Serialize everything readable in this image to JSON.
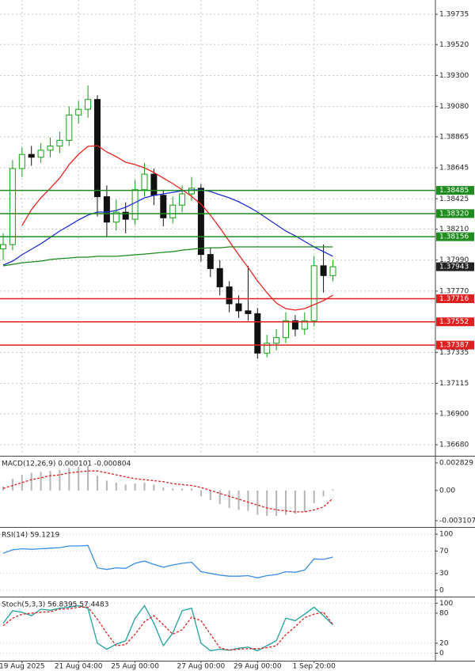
{
  "chart_data": [
    {
      "type": "candlestick",
      "categories": [
        null,
        null,
        "19 Aug 2025",
        null,
        null,
        null,
        null,
        null,
        "21 Aug 04:00",
        null,
        null,
        null,
        null,
        null,
        "25 Aug 00:00",
        null,
        null,
        null,
        null,
        null,
        null,
        "27 Aug 00:00",
        null,
        null,
        null,
        null,
        null,
        "29 Aug 00:00",
        null,
        null,
        null,
        null,
        null,
        "1 Sep 20:00",
        null,
        null
      ],
      "open": [
        1.3807,
        1.381,
        1.3864,
        1.3874,
        1.3872,
        1.3877,
        1.388,
        1.3884,
        1.3902,
        1.3906,
        1.3913,
        1.3844,
        1.3826,
        1.3833,
        1.3828,
        1.3849,
        1.386,
        1.3845,
        1.3829,
        1.3838,
        1.3846,
        1.385,
        1.3803,
        1.3793,
        1.378,
        1.3768,
        1.3763,
        1.3761,
        1.3733,
        1.374,
        1.3744,
        1.3756,
        1.375,
        1.3756,
        1.3795,
        1.3788
      ],
      "high": [
        1.3818,
        1.387,
        1.3879,
        1.388,
        1.3882,
        1.3886,
        1.389,
        1.3908,
        1.3912,
        1.3923,
        1.3916,
        1.3852,
        1.3842,
        1.384,
        1.3856,
        1.3868,
        1.3864,
        1.3849,
        1.3844,
        1.3852,
        1.3858,
        1.3853,
        1.3808,
        1.3799,
        1.3784,
        1.3774,
        1.3795,
        1.3765,
        1.3746,
        1.375,
        1.3762,
        1.376,
        1.3762,
        1.3802,
        1.381,
        1.3799
      ],
      "low": [
        1.3799,
        1.3806,
        1.3858,
        1.3866,
        1.3868,
        1.3872,
        1.3875,
        1.388,
        1.3896,
        1.39,
        1.383,
        1.3816,
        1.382,
        1.3818,
        1.3824,
        1.3844,
        1.3838,
        1.3823,
        1.3825,
        1.3833,
        1.3841,
        1.3798,
        1.3787,
        1.3774,
        1.3762,
        1.3758,
        1.3756,
        1.3729,
        1.373,
        1.3735,
        1.374,
        1.3745,
        1.3746,
        1.3752,
        1.3776,
        1.3784
      ],
      "close": [
        1.381,
        1.3864,
        1.3874,
        1.3872,
        1.3877,
        1.388,
        1.3884,
        1.3902,
        1.3906,
        1.3913,
        1.3844,
        1.3826,
        1.3833,
        1.3828,
        1.3849,
        1.386,
        1.3845,
        1.3829,
        1.3838,
        1.3846,
        1.385,
        1.3803,
        1.3793,
        1.378,
        1.3768,
        1.3763,
        1.3761,
        1.3733,
        1.374,
        1.3744,
        1.3756,
        1.375,
        1.3756,
        1.3795,
        1.3788,
        1.37943
      ],
      "up_color": "#12a012",
      "down_color": "#111111",
      "ylim": [
        1.36607,
        1.39836
      ],
      "yticks": [
        1.39735,
        {
          "value": 1.3952,
          "label": "1.39520"
        },
        {
          "value": 1.393,
          "label": "1.39300"
        },
        {
          "value": 1.3908,
          "label": "1.39080"
        },
        1.38865,
        1.38645,
        1.38425,
        {
          "value": 1.3821,
          "label": "1.38210"
        },
        {
          "value": 1.3799,
          "label": "1.37990"
        },
        {
          "value": 1.3777,
          "label": "1.37770"
        },
        1.37335,
        1.37115,
        {
          "value": 1.369,
          "label": "1.36900"
        },
        {
          "value": 1.3668,
          "label": "1.36680"
        }
      ],
      "grid": true,
      "series": [
        {
          "color": "#e8231f",
          "values": [
            null,
            null,
            1.38235,
            1.38348,
            1.38432,
            1.385,
            1.38572,
            1.38668,
            1.38741,
            1.38797,
            1.38803,
            1.38758,
            1.38724,
            1.38685,
            1.38668,
            1.38645,
            1.38612,
            1.38572,
            1.38533,
            1.38488,
            1.38443,
            1.38387,
            1.38309,
            1.38219,
            1.38123,
            1.38028,
            1.37938,
            1.37842,
            1.37758,
            1.37685,
            1.37646,
            1.37635,
            1.37646,
            1.37674,
            1.37702,
            1.37741
          ]
        },
        {
          "color": "#1f2fd6",
          "values": [
            1.37955,
            1.37983,
            1.38028,
            1.38067,
            1.38106,
            1.38151,
            1.38196,
            1.38235,
            1.38275,
            1.38309,
            1.38331,
            1.38331,
            1.38342,
            1.38365,
            1.38398,
            1.38432,
            1.38449,
            1.3846,
            1.38471,
            1.38482,
            1.38488,
            1.38488,
            1.38477,
            1.38454,
            1.38432,
            1.38404,
            1.3837,
            1.38331,
            1.38286,
            1.38241,
            1.38196,
            1.38162,
            1.38123,
            1.38084,
            1.3805,
            1.38017
          ]
        },
        {
          "color": "#1a8a1a",
          "values": [
            1.37949,
            1.3796,
            1.37971,
            1.37977,
            1.37983,
            1.37994,
            1.38,
            1.38005,
            1.38011,
            1.38011,
            1.38017,
            1.38017,
            1.38017,
            1.38022,
            1.38028,
            1.38033,
            1.38039,
            1.38045,
            1.3805,
            1.38061,
            1.38067,
            1.38073,
            1.38078,
            1.38078,
            1.38084,
            1.38084,
            1.38084,
            1.38084,
            1.38084,
            1.38084,
            1.38084,
            1.38084,
            1.38084,
            1.38084,
            1.38084,
            1.38084
          ]
        }
      ],
      "levels": [
        {
          "value": 1.38485,
          "color": "#1e8c1e"
        },
        {
          "value": 1.3832,
          "label": "1.38320",
          "color": "#1e8c1e"
        },
        {
          "value": 1.38156,
          "color": "#1e8c1e"
        },
        {
          "value": 1.37716,
          "color": "#e02020"
        },
        {
          "value": 1.37552,
          "color": "#e02020"
        },
        {
          "value": 1.37387,
          "color": "#e02020"
        }
      ],
      "last_price": 1.37943,
      "last_price_color": "#222222"
    },
    {
      "type": "macd",
      "title": "MACD(12,26,9) 0.000101 -0.000804",
      "values": [
        0.0004,
        0.0012,
        0.0016,
        0.0018,
        0.0019,
        0.002,
        0.0021,
        0.0023,
        0.0024,
        0.0025,
        0.0015,
        0.001,
        0.0008,
        0.0006,
        0.0007,
        0.0008,
        0.0006,
        0.0003,
        0.0002,
        0.0002,
        0.0002,
        -0.0006,
        -0.001,
        -0.0014,
        -0.0018,
        -0.002,
        -0.0021,
        -0.0025,
        -0.0026,
        -0.0026,
        -0.0025,
        -0.0024,
        -0.0022,
        -0.0013,
        -0.0006,
        0.000101
      ],
      "color": "#b4b4b4",
      "signal": [
        0.0002,
        0.0005,
        0.0008,
        0.0011,
        0.0013,
        0.0015,
        0.0016,
        0.0018,
        0.0019,
        0.002,
        0.002,
        0.0018,
        0.0016,
        0.0014,
        0.0012,
        0.0011,
        0.001,
        0.0009,
        0.0007,
        0.0006,
        0.0005,
        0.0003,
        0.0,
        -0.0003,
        -0.0006,
        -0.0009,
        -0.0012,
        -0.0015,
        -0.0018,
        -0.002,
        -0.0021,
        -0.0022,
        -0.0022,
        -0.002,
        -0.0017,
        -0.000804
      ],
      "signal_color": "#e02020",
      "ylim": [
        -0.003673,
        0.003395
      ],
      "yticks": [
        0.002829,
        {
          "value": 0,
          "label": "0.00"
        },
        -0.003107
      ]
    },
    {
      "type": "line",
      "title": "RSI(14) 59.1219",
      "series": [
        {
          "color": "#3a8ee6",
          "values": [
            66,
            72,
            74,
            73,
            74,
            75,
            76,
            79,
            79,
            80,
            40,
            37,
            40,
            39,
            48,
            52,
            46,
            41,
            45,
            48,
            50,
            33,
            30,
            27,
            25,
            25,
            26,
            22,
            26,
            28,
            33,
            32,
            36,
            56,
            55,
            59.1219
          ]
        }
      ],
      "ylim": [
        -10,
        110
      ],
      "yticks": [
        100,
        70,
        30,
        0
      ]
    },
    {
      "type": "line",
      "title": "Stoch(5,3,3) 56.8395 57.4483",
      "series": [
        {
          "color": "#20a0a0",
          "values": [
            60,
            85,
            82,
            75,
            88,
            86,
            90,
            92,
            95,
            90,
            20,
            8,
            18,
            25,
            70,
            95,
            60,
            15,
            40,
            85,
            90,
            20,
            5,
            8,
            6,
            10,
            12,
            5,
            15,
            25,
            70,
            65,
            78,
            92,
            75,
            56.8395
          ]
        },
        {
          "color": "#e02020",
          "style": "dashed",
          "values": [
            55,
            70,
            78,
            80,
            82,
            83,
            88,
            89,
            92,
            92,
            68,
            40,
            15,
            17,
            38,
            63,
            75,
            57,
            38,
            47,
            72,
            65,
            38,
            11,
            6,
            8,
            9,
            9,
            11,
            15,
            37,
            53,
            71,
            78,
            82,
            57.4483
          ]
        }
      ],
      "ylim": [
        -15,
        110
      ],
      "yticks": [
        100,
        80,
        20,
        0
      ]
    }
  ]
}
